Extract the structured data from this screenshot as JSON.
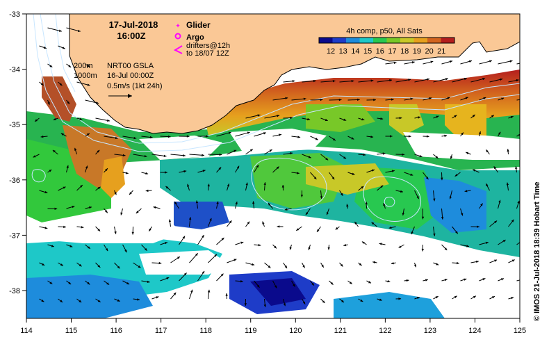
{
  "header": {
    "date": "17-Jul-2018",
    "time": "16:00Z"
  },
  "legend": {
    "glider_label": "Glider",
    "argo_label": "Argo",
    "drifters_line1": "drifters@12h",
    "drifters_line2": "to 18/07 12Z",
    "glider_color": "#ff00ff",
    "argo_color": "#ff00ff",
    "drifter_color": "#ff00ff"
  },
  "info": {
    "contour_200": "200m",
    "contour_1000": "1000m",
    "product": "NRT00 GSLA",
    "product_time": "16-Jul 00:00Z",
    "vector_scale": "0.5m/s (1kt 24h)"
  },
  "colorbar": {
    "title": "4h comp, p50, All Sats",
    "ticks": [
      "12",
      "13",
      "14",
      "15",
      "16",
      "17",
      "18",
      "19",
      "20",
      "21"
    ],
    "colors": [
      "#0a0a8c",
      "#1e3cc8",
      "#1e8cdc",
      "#1ec8c8",
      "#28c850",
      "#78c828",
      "#c8c828",
      "#e6a01e",
      "#d2641e",
      "#b41e1e"
    ]
  },
  "axes": {
    "lon_ticks": [
      "114",
      "115",
      "116",
      "117",
      "118",
      "119",
      "120",
      "121",
      "122",
      "123",
      "124",
      "125"
    ],
    "lat_ticks": [
      "-33",
      "-34",
      "-35",
      "-36",
      "-37",
      "-38"
    ]
  },
  "credit": "© IMOS 21-Jul-2018 18:39 Hobart Time",
  "colors": {
    "land": "#fac896",
    "no_data": "#ffffff",
    "contour": "#c8e6ff"
  }
}
